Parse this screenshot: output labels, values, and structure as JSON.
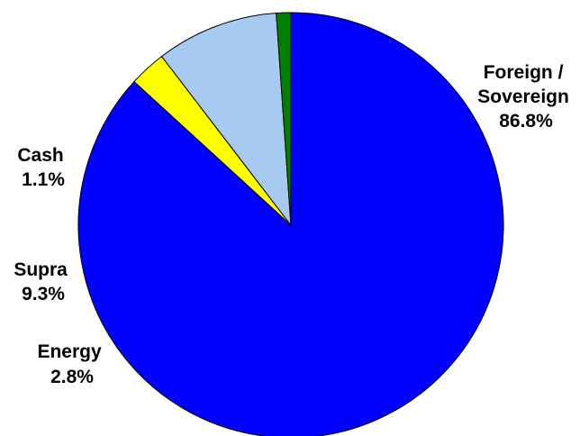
{
  "chart_data": {
    "type": "pie",
    "title": "",
    "legend": "none",
    "start_angle_deg": -90,
    "direction": "clockwise",
    "slices": [
      {
        "label_lines": [
          "Foreign /",
          "Sovereign"
        ],
        "value": 86.8,
        "value_label": "86.8%",
        "color": "#0000ff",
        "key": "foreign-sovereign"
      },
      {
        "label_lines": [
          "Energy"
        ],
        "value": 2.8,
        "value_label": "2.8%",
        "color": "#ffff00",
        "key": "energy"
      },
      {
        "label_lines": [
          "Supra"
        ],
        "value": 9.3,
        "value_label": "9.3%",
        "color": "#a6caf0",
        "key": "supra"
      },
      {
        "label_lines": [
          "Cash"
        ],
        "value": 1.1,
        "value_label": "1.1%",
        "color": "#008000",
        "key": "cash"
      }
    ]
  }
}
